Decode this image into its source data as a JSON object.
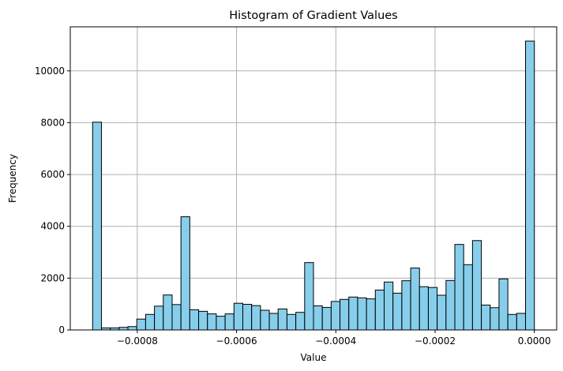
{
  "chart_data": {
    "type": "bar",
    "title": "Histogram of Gradient Values",
    "xlabel": "Value",
    "ylabel": "Frequency",
    "xlim": [
      -0.000935,
      4.5e-05
    ],
    "ylim": [
      0,
      11700
    ],
    "grid": true,
    "colors": {
      "bar_fill": "#87ceeb",
      "bar_edge": "#000000",
      "grid": "#b0b0b0"
    },
    "x_ticks": [
      {
        "value": -0.0008,
        "label": "−0.0008"
      },
      {
        "value": -0.0006,
        "label": "−0.0006"
      },
      {
        "value": -0.0004,
        "label": "−0.0004"
      },
      {
        "value": -0.0002,
        "label": "−0.0002"
      },
      {
        "value": 0.0,
        "label": "0.0000"
      }
    ],
    "y_ticks": [
      {
        "value": 0,
        "label": "0"
      },
      {
        "value": 2000,
        "label": "2000"
      },
      {
        "value": 4000,
        "label": "4000"
      },
      {
        "value": 6000,
        "label": "6000"
      },
      {
        "value": 8000,
        "label": "8000"
      },
      {
        "value": 10000,
        "label": "10000"
      }
    ],
    "bin_start": -0.00089,
    "bin_end": 0.0,
    "values": [
      8020,
      80,
      80,
      100,
      130,
      420,
      600,
      920,
      1350,
      980,
      4370,
      780,
      720,
      620,
      530,
      620,
      1030,
      990,
      940,
      760,
      640,
      810,
      600,
      680,
      2600,
      930,
      870,
      1100,
      1180,
      1270,
      1240,
      1200,
      1540,
      1850,
      1420,
      1900,
      2390,
      1670,
      1640,
      1340,
      1910,
      3300,
      2520,
      3450,
      960,
      860,
      1970,
      600,
      640,
      11150
    ]
  }
}
